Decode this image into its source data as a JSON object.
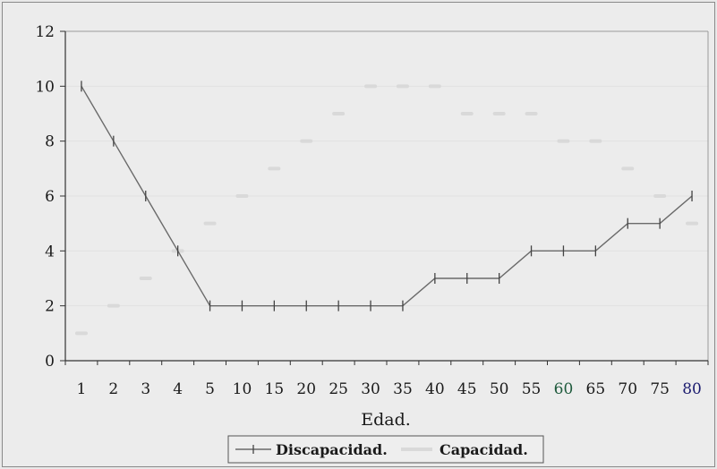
{
  "chart_data": {
    "type": "line",
    "title": "",
    "xlabel": "Edad.",
    "ylabel": "",
    "ylim": [
      0,
      12
    ],
    "yticks": [
      0,
      2,
      4,
      6,
      8,
      10,
      12
    ],
    "categories": [
      "1",
      "2",
      "3",
      "4",
      "5",
      "10",
      "15",
      "20",
      "25",
      "30",
      "35",
      "40",
      "45",
      "50",
      "55",
      "60",
      "65",
      "70",
      "75",
      "80"
    ],
    "category_colors": {
      "60": "#1e5a3c",
      "80": "#1a1a6e"
    },
    "grid": true,
    "legend_position": "bottom",
    "series": [
      {
        "name": "Discapacidad.",
        "color": "#6a6a6a",
        "marker": "tick",
        "values": [
          10,
          8,
          6,
          4,
          2,
          2,
          2,
          2,
          2,
          2,
          2,
          3,
          3,
          3,
          4,
          4,
          4,
          5,
          5,
          6
        ]
      },
      {
        "name": "Capacidad.",
        "color": "#d9d9d9",
        "marker": "tick",
        "values": [
          1,
          2,
          3,
          4,
          5,
          6,
          7,
          8,
          9,
          10,
          10,
          10,
          9,
          9,
          9,
          8,
          8,
          7,
          6,
          5
        ]
      }
    ]
  }
}
